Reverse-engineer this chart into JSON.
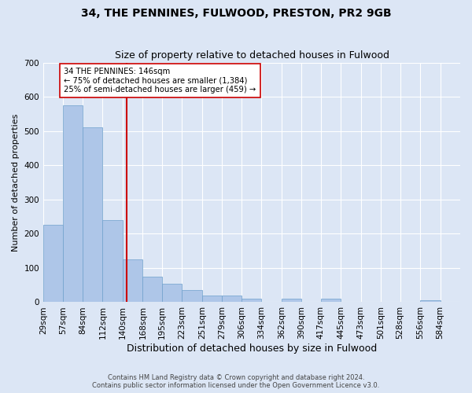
{
  "title1": "34, THE PENNINES, FULWOOD, PRESTON, PR2 9GB",
  "title2": "Size of property relative to detached houses in Fulwood",
  "xlabel": "Distribution of detached houses by size in Fulwood",
  "ylabel": "Number of detached properties",
  "footnote": "Contains HM Land Registry data © Crown copyright and database right 2024.\nContains public sector information licensed under the Open Government Licence v3.0.",
  "bin_edges": [
    29,
    57,
    84,
    112,
    140,
    168,
    195,
    223,
    251,
    279,
    306,
    334,
    362,
    390,
    417,
    445,
    473,
    501,
    528,
    556,
    584
  ],
  "bar_heights": [
    225,
    575,
    510,
    240,
    125,
    75,
    55,
    35,
    20,
    20,
    10,
    0,
    10,
    0,
    10,
    0,
    0,
    0,
    0,
    5
  ],
  "bar_color": "#aec6e8",
  "bar_edge_color": "#6ea0cc",
  "vline_x": 146,
  "vline_color": "#cc0000",
  "annotation_text": "34 THE PENNINES: 146sqm\n← 75% of detached houses are smaller (1,384)\n25% of semi-detached houses are larger (459) →",
  "annotation_box_color": "#ffffff",
  "annotation_box_edge": "#cc0000",
  "ylim": [
    0,
    700
  ],
  "yticks": [
    0,
    100,
    200,
    300,
    400,
    500,
    600,
    700
  ],
  "fig_bg_color": "#dce6f5",
  "plot_bg_color": "#dce6f5",
  "grid_color": "#ffffff",
  "title1_fontsize": 10,
  "title2_fontsize": 9,
  "xlabel_fontsize": 9,
  "ylabel_fontsize": 8,
  "tick_fontsize": 7.5
}
